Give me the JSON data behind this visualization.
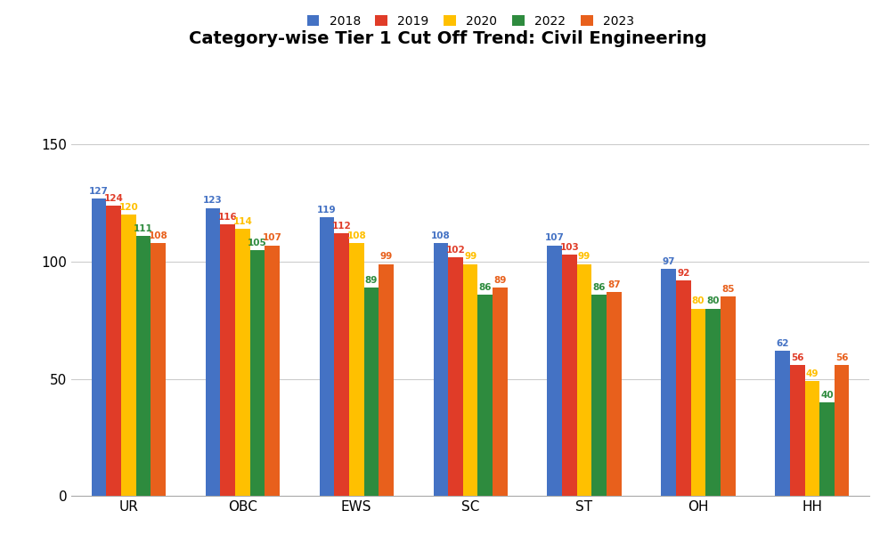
{
  "title": "Category-wise Tier 1 Cut Off Trend: Civil Engineering",
  "categories": [
    "UR",
    "OBC",
    "EWS",
    "SC",
    "ST",
    "OH",
    "HH"
  ],
  "years": [
    "2018",
    "2019",
    "2020",
    "2022",
    "2023"
  ],
  "colors": [
    "#4472C4",
    "#E03C28",
    "#FFC000",
    "#2E8B3E",
    "#E8601C"
  ],
  "data": {
    "2018": [
      127,
      123,
      119,
      108,
      107,
      97,
      62
    ],
    "2019": [
      124,
      116,
      112,
      102,
      103,
      92,
      56
    ],
    "2020": [
      120,
      114,
      108,
      99,
      99,
      80,
      49
    ],
    "2022": [
      111,
      105,
      89,
      86,
      86,
      80,
      40
    ],
    "2023": [
      108,
      107,
      99,
      89,
      87,
      85,
      56
    ]
  },
  "ylim": [
    0,
    160
  ],
  "yticks": [
    0,
    50,
    100,
    150
  ],
  "bar_width": 0.13,
  "figsize": [
    10.06,
    6.19
  ],
  "dpi": 100,
  "background_color": "#FFFFFF",
  "grid_color": "#CCCCCC",
  "label_fontsize": 7.5,
  "title_fontsize": 14,
  "legend_fontsize": 10,
  "axis_fontsize": 11
}
